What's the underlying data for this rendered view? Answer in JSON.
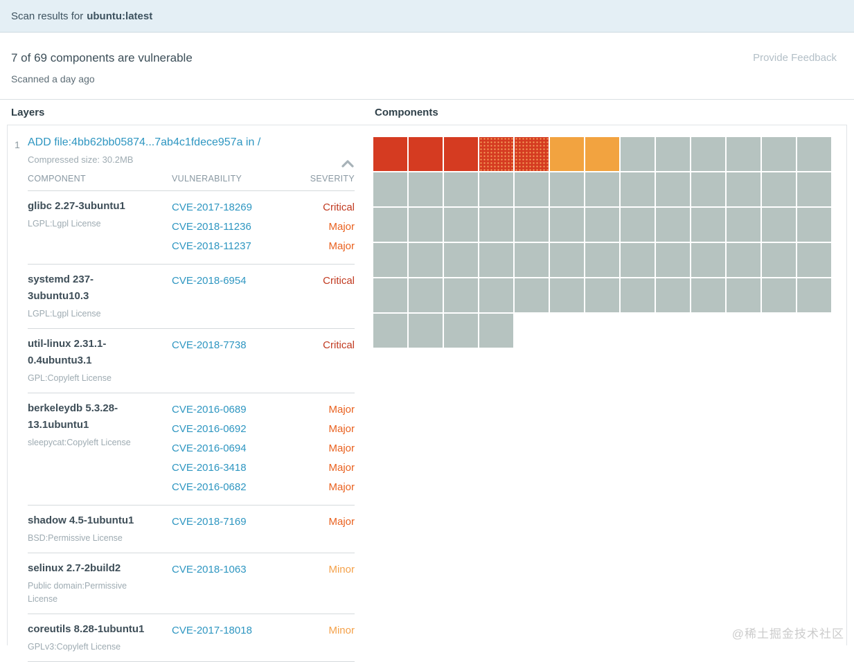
{
  "title_bar": {
    "prefix": "Scan results for",
    "image_name": "ubuntu:latest"
  },
  "summary": {
    "headline": "7 of 69 components are vulnerable",
    "scanned": "Scanned a day ago",
    "feedback_link": "Provide Feedback"
  },
  "sections": {
    "layers_label": "Layers",
    "components_label": "Components"
  },
  "icons": {
    "collapse": "chevron-up-icon"
  },
  "layer": {
    "number": "1",
    "instruction": "ADD file:4bb62bb05874...7ab4c1fdece957a in /",
    "compressed_size": "Compressed size: 30.2MB",
    "columns": {
      "component": "COMPONENT",
      "vulnerability": "VULNERABILITY",
      "severity": "SEVERITY"
    },
    "rows": [
      {
        "component": "glibc 2.27-3ubuntu1",
        "license": "LGPL:Lgpl License",
        "vulns": [
          {
            "cve": "CVE-2017-18269",
            "severity": "Critical"
          },
          {
            "cve": "CVE-2018-11236",
            "severity": "Major"
          },
          {
            "cve": "CVE-2018-11237",
            "severity": "Major"
          }
        ]
      },
      {
        "component": "systemd 237-3ubuntu10.3",
        "license": "LGPL:Lgpl License",
        "vulns": [
          {
            "cve": "CVE-2018-6954",
            "severity": "Critical"
          }
        ]
      },
      {
        "component": "util-linux 2.31.1-0.4ubuntu3.1",
        "license": "GPL:Copyleft License",
        "vulns": [
          {
            "cve": "CVE-2018-7738",
            "severity": "Critical"
          }
        ]
      },
      {
        "component": "berkeleydb 5.3.28-13.1ubuntu1",
        "license": "sleepycat:Copyleft License",
        "vulns": [
          {
            "cve": "CVE-2016-0689",
            "severity": "Major"
          },
          {
            "cve": "CVE-2016-0692",
            "severity": "Major"
          },
          {
            "cve": "CVE-2016-0694",
            "severity": "Major"
          },
          {
            "cve": "CVE-2016-3418",
            "severity": "Major"
          },
          {
            "cve": "CVE-2016-0682",
            "severity": "Major"
          }
        ]
      },
      {
        "component": "shadow 4.5-1ubuntu1",
        "license": "BSD:Permissive License",
        "vulns": [
          {
            "cve": "CVE-2018-7169",
            "severity": "Major"
          }
        ]
      },
      {
        "component": "selinux 2.7-2build2",
        "license": "Public domain:Permissive License",
        "vulns": [
          {
            "cve": "CVE-2018-1063",
            "severity": "Minor"
          }
        ]
      },
      {
        "component": "coreutils 8.28-1ubuntu1",
        "license": "GPLv3:Copyleft License",
        "vulns": [
          {
            "cve": "CVE-2017-18018",
            "severity": "Minor"
          }
        ]
      }
    ]
  },
  "components_grid": {
    "total": 69,
    "columns": 13,
    "vulnerable_cells": [
      "critical",
      "critical",
      "critical",
      "major",
      "major",
      "minor",
      "minor"
    ],
    "colors": {
      "critical": "#d53b21",
      "major": "#d53b21",
      "minor": "#f2a340",
      "clean": "#b6c3c0"
    }
  },
  "severity_text_colors": {
    "Critical": "#c13a20",
    "Major": "#e9611f",
    "Minor": "#f4a14a"
  },
  "link_color": "#2e96c1",
  "watermark": "@稀土掘金技术社区"
}
